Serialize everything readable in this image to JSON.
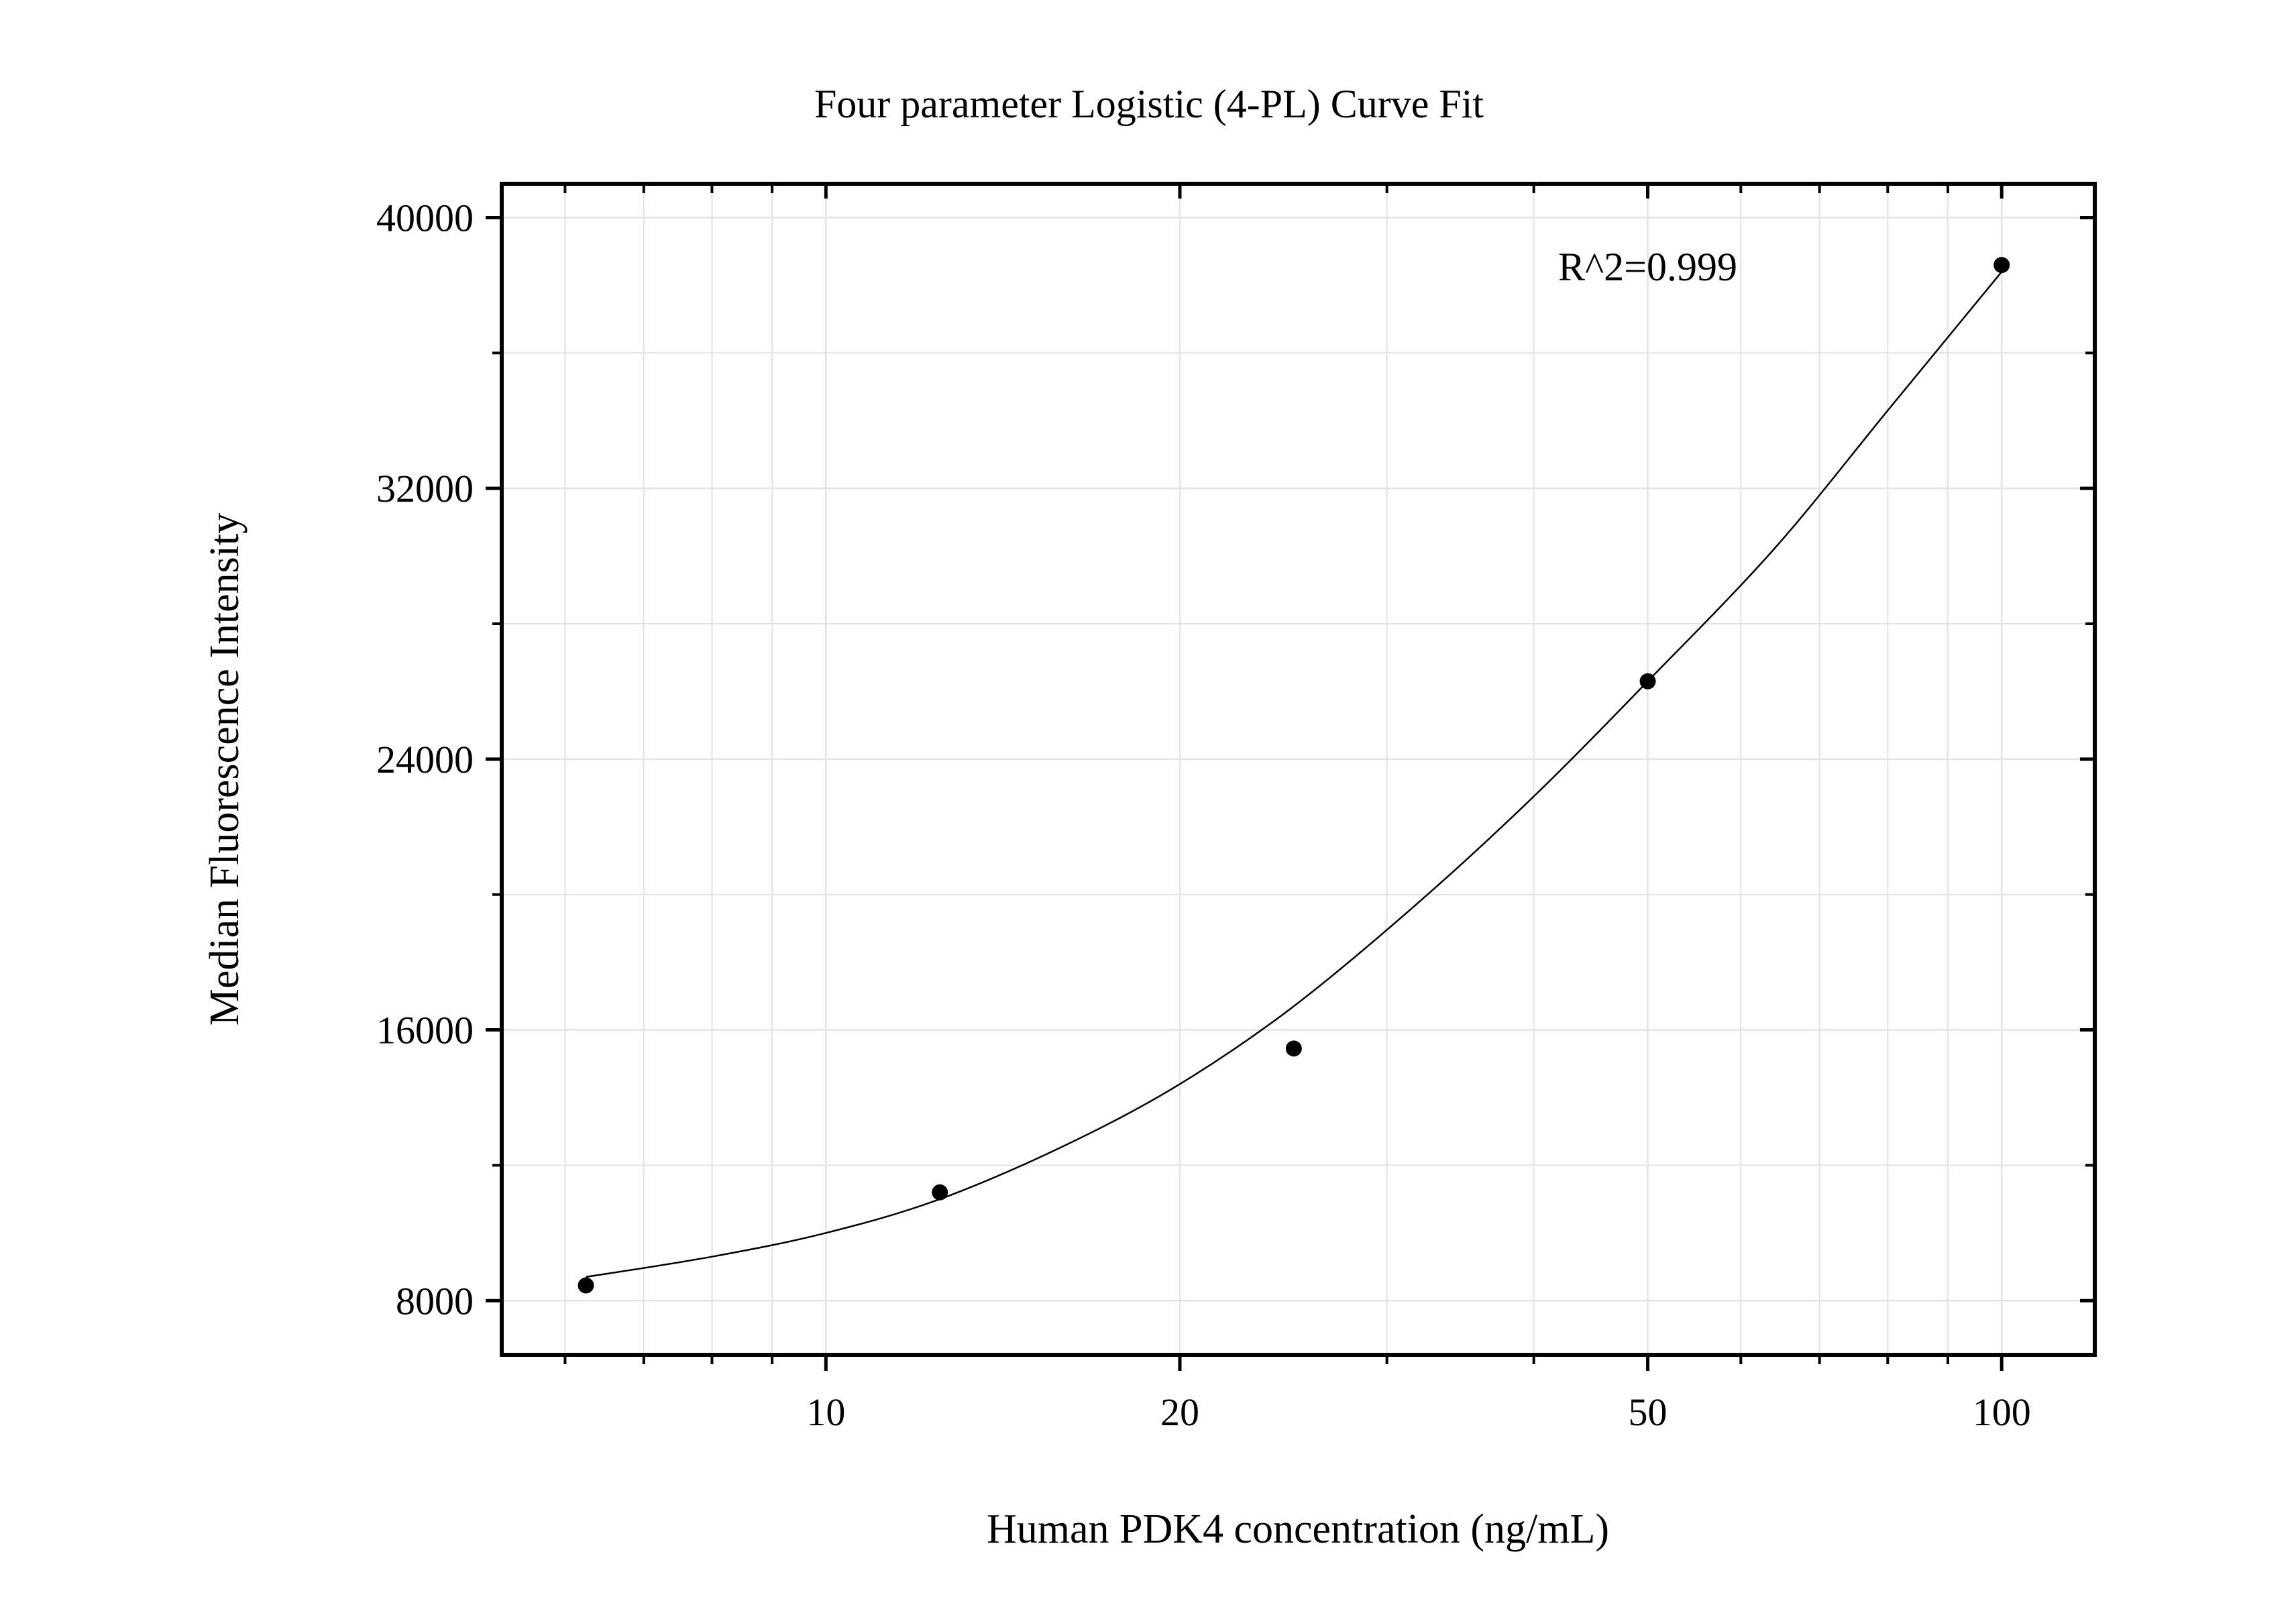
{
  "chart_data": {
    "type": "scatter",
    "title": "Four parameter Logistic (4-PL) Curve Fit",
    "xlabel": "Human PDK4 concentration (ng/mL)",
    "ylabel": "Median Fluorescence Intensity",
    "x_scale": "log",
    "xlim": [
      5.3,
      120
    ],
    "ylim": [
      6400,
      41000
    ],
    "x_ticks": [
      10,
      20,
      50,
      100
    ],
    "x_tick_labels": [
      "10",
      "20",
      "50",
      "100"
    ],
    "y_ticks": [
      8000,
      16000,
      24000,
      32000,
      40000
    ],
    "y_tick_labels": [
      "8000",
      "16000",
      "24000",
      "32000",
      "40000"
    ],
    "grid": true,
    "annotation": "R^2=0.999",
    "series": [
      {
        "points": [
          {
            "x": 6.25,
            "y": 8450
          },
          {
            "x": 12.5,
            "y": 11200
          },
          {
            "x": 25,
            "y": 15450
          },
          {
            "x": 50,
            "y": 26300
          },
          {
            "x": 100,
            "y": 38600
          }
        ]
      }
    ],
    "fit_curve": {
      "model": "4PL",
      "x": [
        6.25,
        8,
        10,
        12.5,
        16,
        20,
        25,
        32,
        40,
        50,
        64,
        80,
        100
      ],
      "y": [
        8700,
        9300,
        10000,
        11000,
        12600,
        14400,
        16700,
        19800,
        22900,
        26300,
        30200,
        34300,
        38400
      ]
    },
    "colors": {
      "points": "#000000",
      "curve": "#000000",
      "grid": "#e3e3e3",
      "axes": "#000000"
    }
  }
}
